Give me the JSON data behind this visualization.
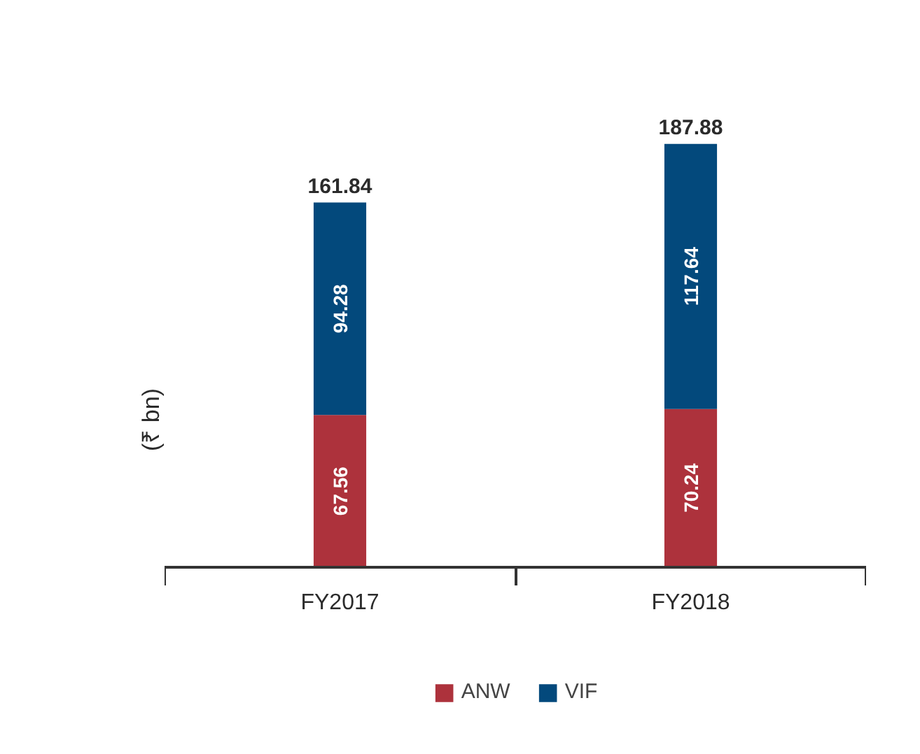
{
  "chart_data": {
    "type": "bar",
    "ylabel": "(₹ bn)",
    "categories": [
      "FY2017",
      "FY2018"
    ],
    "series": [
      {
        "name": "ANW",
        "color": "#ad323c",
        "values": [
          67.56,
          70.24
        ]
      },
      {
        "name": "VIF",
        "color": "#03497c",
        "values": [
          94.28,
          117.64
        ]
      }
    ],
    "stacked": true,
    "data_labels": true,
    "totals": [
      "161.84",
      "187.88"
    ],
    "legend": "bottom",
    "tick_labels": "x"
  }
}
